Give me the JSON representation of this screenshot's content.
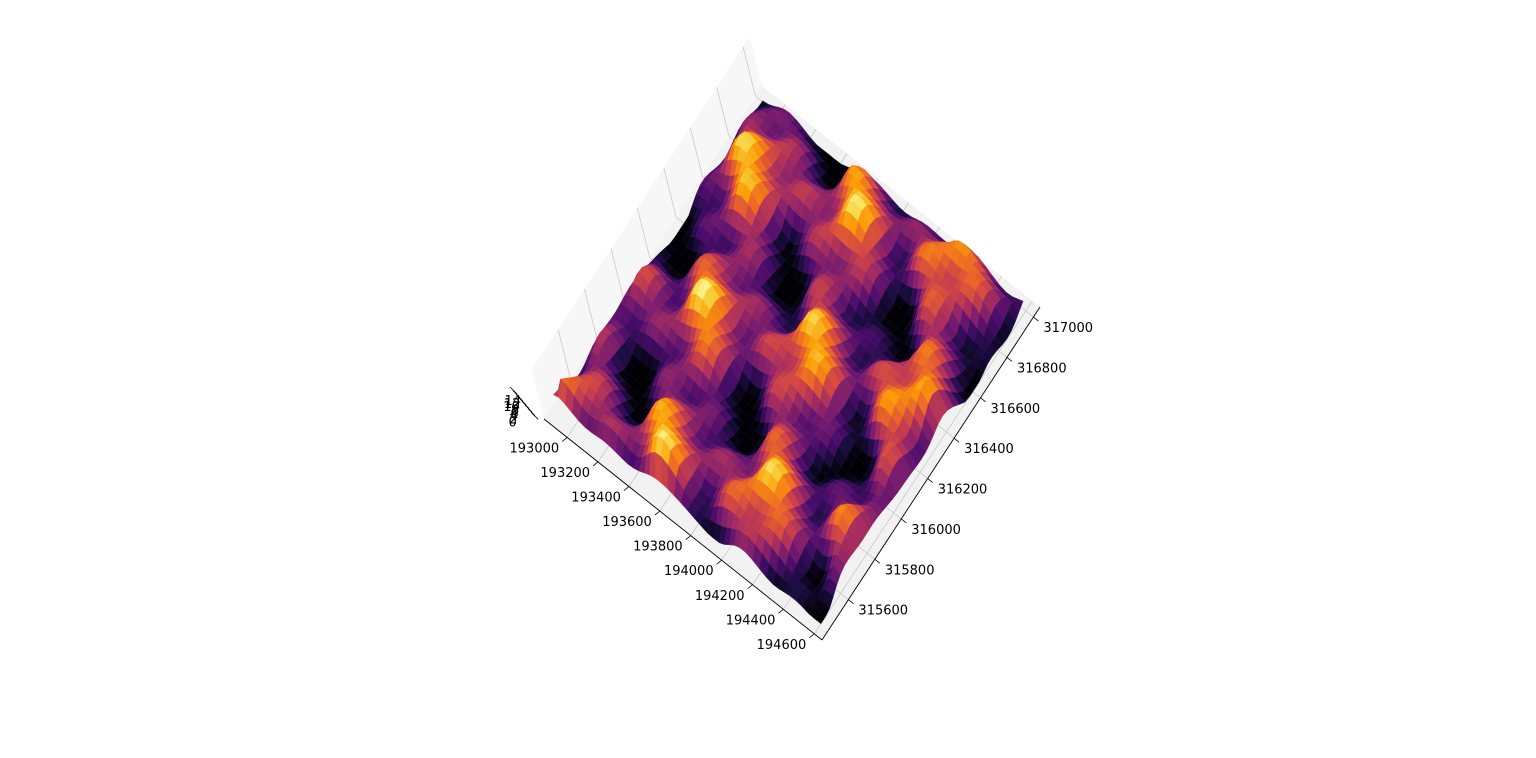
{
  "chart_data": {
    "type": "surface3d",
    "colormap": "inferno",
    "colors": {
      "pane": "#f2f2f2",
      "grid": "#c8c8c8",
      "colormap_stops": [
        "#000004",
        "#1b0c41",
        "#4a0c6b",
        "#781c6d",
        "#a52c60",
        "#cf4446",
        "#ed6925",
        "#fb9b06",
        "#f7d13d",
        "#fcffa4"
      ]
    },
    "x_axis": {
      "ticks": [
        193000,
        193200,
        193400,
        193600,
        193800,
        194000,
        194200,
        194400,
        194600
      ],
      "tick_labels": [
        "193000",
        "193200",
        "193400",
        "193600",
        "193800",
        "194000",
        "194200",
        "194400",
        "194600"
      ],
      "range": [
        192850,
        194650
      ]
    },
    "y_axis": {
      "ticks": [
        315600,
        315800,
        316000,
        316200,
        316400,
        316600,
        316800,
        317000
      ],
      "tick_labels": [
        "315600",
        "315800",
        "316000",
        "316200",
        "316400",
        "316600",
        "316800",
        "317000"
      ],
      "range": [
        315400,
        317050
      ]
    },
    "z_axis": {
      "ticks": [
        0,
        2,
        4,
        6,
        8,
        10,
        12,
        14
      ],
      "tick_labels": [
        "0",
        "2",
        "4",
        "6",
        "8",
        "10",
        "12",
        "14"
      ],
      "range": [
        0,
        14
      ]
    },
    "grid": true,
    "title": "",
    "xlabel": "",
    "ylabel": "",
    "zlabel": ""
  }
}
